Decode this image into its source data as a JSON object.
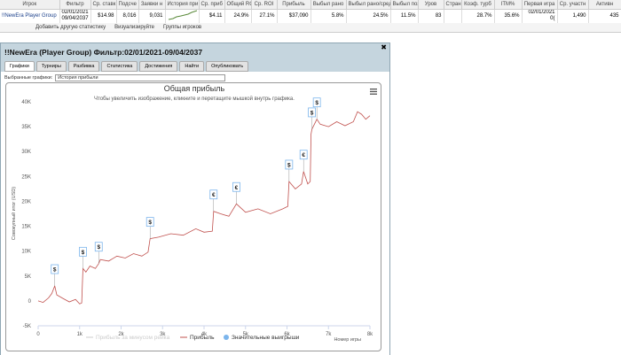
{
  "table": {
    "headers": [
      "Игрок",
      "Фильтр",
      "Ср. ставк",
      "Подсче",
      "Заявки н",
      "История при",
      "Ср. приб",
      "Общий RC",
      "Ср. ROI",
      "Прибыль",
      "Выбыл рано",
      "Выбыл рано/сред",
      "Выбыл позд",
      "Уров",
      "Стран",
      "Коэф. турб",
      "ITM%",
      "Первая игра",
      "Ср. участн",
      "Активн"
    ],
    "row": [
      "!!NewEra Player Group",
      "02/01/2021 09/04/2037",
      "$14.98",
      "8,016",
      "9,031",
      null,
      "$4.11",
      "24.9%",
      "27.1%",
      "$37,090",
      "5.8%",
      "24.5%",
      "11.5%",
      "83",
      null,
      "28.7%",
      "35.6%",
      "02/01/2021 0(",
      "1,490",
      "435"
    ]
  },
  "toolbar": [
    "Добавить другую статистику",
    "Визуализируйте",
    "Группы игроков"
  ],
  "window": {
    "title": "!!NewEra (Player Group) Фильтр:02/01/2021-09/04/2037",
    "tabs": [
      "Графики",
      "Турниры",
      "Разбивка",
      "Статистика",
      "Достижения",
      "Найти",
      "Опубликовать"
    ],
    "selector_label": "Выбранные графики:",
    "selector_value": "История прибыли"
  },
  "chart_data": {
    "type": "line",
    "title": "Общая прибыль",
    "subtitle": "Чтобы увеличить изображение, кликните и перетащите мышкой внутрь графика.",
    "ylabel": "Совокупный итог (USD)",
    "xlabel": "Номер игры",
    "x": [
      0,
      120,
      250,
      330,
      400,
      450,
      600,
      750,
      900,
      1000,
      1050,
      1080,
      1150,
      1250,
      1380,
      1460,
      1500,
      1700,
      1900,
      2100,
      2300,
      2500,
      2650,
      2700,
      2900,
      3200,
      3500,
      3800,
      4000,
      4200,
      4230,
      4400,
      4600,
      4780,
      5000,
      5300,
      5600,
      5900,
      6020,
      6050,
      6200,
      6350,
      6400,
      6500,
      6560,
      6580,
      6600,
      6720,
      6800,
      7000,
      7200,
      7400,
      7600,
      7700,
      7800,
      7900,
      8000
    ],
    "series": [
      {
        "name": "Прибыль",
        "color": "#c0504d",
        "values": [
          0,
          -300,
          600,
          1500,
          3000,
          1200,
          500,
          -200,
          300,
          -600,
          -400,
          6500,
          5800,
          7000,
          6500,
          7500,
          8300,
          8000,
          9000,
          8600,
          9500,
          9000,
          9800,
          12500,
          12800,
          13500,
          13200,
          14500,
          13800,
          14000,
          18000,
          17500,
          17000,
          19500,
          17800,
          18500,
          17500,
          18500,
          19000,
          24000,
          22500,
          23500,
          26000,
          23500,
          24000,
          33500,
          34500,
          36500,
          35500,
          35000,
          36000,
          35200,
          36000,
          38000,
          37500,
          36500,
          37200
        ]
      }
    ],
    "hidden_series": {
      "name": "Прибыль за минусом рейка",
      "color": "#cccccc"
    },
    "markers_name": "Значительные выигрыши",
    "markers_color": "#7cb5ec",
    "markers": [
      {
        "x": 400,
        "y": 3000,
        "label": "$"
      },
      {
        "x": 1080,
        "y": 6500,
        "label": "$"
      },
      {
        "x": 1460,
        "y": 7500,
        "label": "$"
      },
      {
        "x": 2700,
        "y": 12500,
        "label": "$"
      },
      {
        "x": 4230,
        "y": 18000,
        "label": "€"
      },
      {
        "x": 4780,
        "y": 19500,
        "label": "€"
      },
      {
        "x": 6050,
        "y": 24000,
        "label": "$"
      },
      {
        "x": 6400,
        "y": 26000,
        "label": "€"
      },
      {
        "x": 6600,
        "y": 34500,
        "label": "$"
      },
      {
        "x": 6720,
        "y": 36500,
        "label": "$"
      }
    ],
    "xlim": [
      0,
      8000
    ],
    "xticks": [
      0,
      {
        "value": 1000,
        "label": "1k"
      },
      {
        "value": 2000,
        "label": "2k"
      },
      {
        "value": 3000,
        "label": "3k"
      },
      {
        "value": 4000,
        "label": "4k"
      },
      {
        "value": 5000,
        "label": "5k"
      },
      {
        "value": 6000,
        "label": "6k"
      },
      {
        "value": 7000,
        "label": "7k"
      },
      {
        "value": 8000,
        "label": "8k"
      }
    ],
    "ylim": [
      -5000,
      40000
    ],
    "yticks": [
      {
        "value": -5000,
        "label": "-5K"
      },
      0,
      {
        "value": 5000,
        "label": "5K"
      },
      {
        "value": 10000,
        "label": "10K"
      },
      {
        "value": 15000,
        "label": "15K"
      },
      {
        "value": 20000,
        "label": "20K"
      },
      {
        "value": 25000,
        "label": "25K"
      },
      {
        "value": 30000,
        "label": "30K"
      },
      {
        "value": 35000,
        "label": "35K"
      },
      {
        "value": 40000,
        "label": "40K"
      }
    ],
    "grid": false
  }
}
